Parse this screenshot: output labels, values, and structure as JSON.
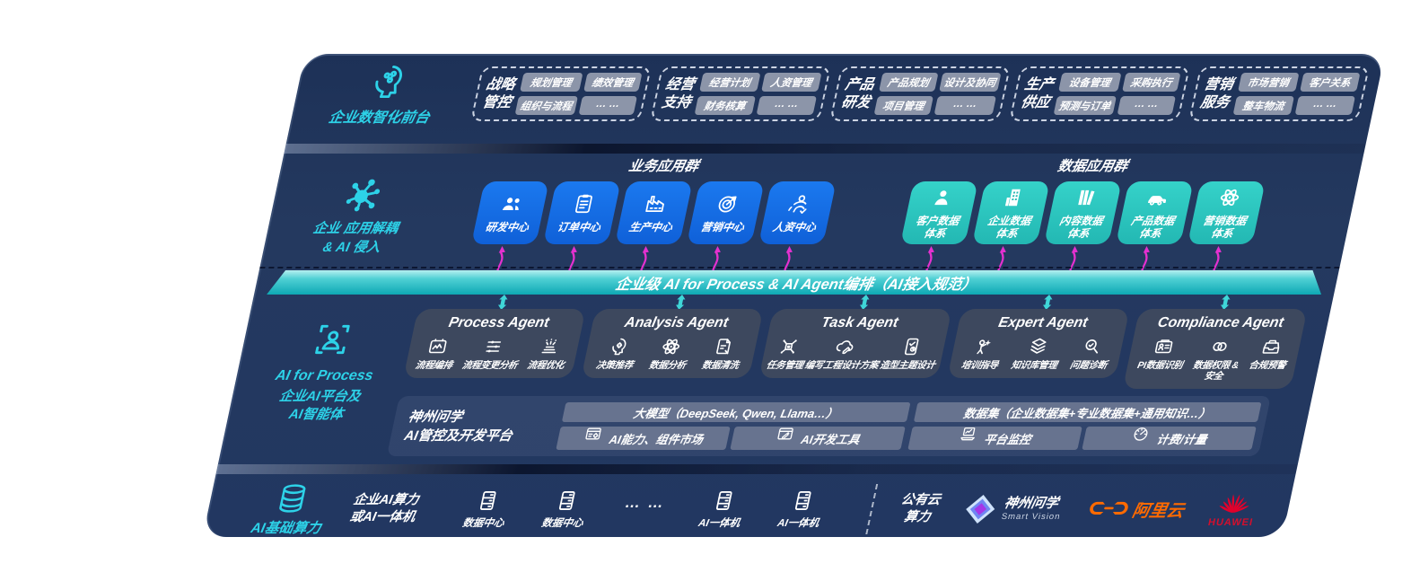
{
  "colors": {
    "navy": "#24395f",
    "business_blue": "#1570e8",
    "data_teal": "#2cc9c1",
    "bus_teal": "#0ea8b4",
    "magenta": "#e431cf",
    "cyan_accent": "#2dd2e8",
    "aliyun_orange": "#ff6a00",
    "huawei_red": "#d40f2d"
  },
  "front_office": {
    "label": "企业数智化前台",
    "icon": "head-brain-icon",
    "groups": [
      {
        "title_lines": [
          "战略",
          "管控"
        ],
        "items": [
          "规划管理",
          "绩效管理",
          "组织与流程",
          "… …"
        ]
      },
      {
        "title_lines": [
          "经营",
          "支持"
        ],
        "items": [
          "经营计划",
          "人资管理",
          "财务核算",
          "… …"
        ]
      },
      {
        "title_lines": [
          "产品",
          "研发"
        ],
        "items": [
          "产品规划",
          "设计及协同",
          "项目管理",
          "… …"
        ]
      },
      {
        "title_lines": [
          "生产",
          "供应"
        ],
        "items": [
          "设备管理",
          "采购执行",
          "预测与订单",
          "… …"
        ]
      },
      {
        "title_lines": [
          "营销",
          "服务"
        ],
        "items": [
          "市场营销",
          "客户关系",
          "整车物流",
          "… …"
        ]
      }
    ]
  },
  "app_layer": {
    "label_line1": "企业 应用解耦",
    "label_line2": "& AI 侵入",
    "icon": "molecule-icon",
    "business_group": {
      "title": "业务应用群",
      "apps": [
        {
          "lines": [
            "研发中心"
          ],
          "icon": "users-icon"
        },
        {
          "lines": [
            "订单中心"
          ],
          "icon": "clipboard-icon"
        },
        {
          "lines": [
            "生产中心"
          ],
          "icon": "factory-icon"
        },
        {
          "lines": [
            "营销中心"
          ],
          "icon": "target-icon"
        },
        {
          "lines": [
            "人资中心"
          ],
          "icon": "team-icon"
        }
      ]
    },
    "data_group": {
      "title": "数据应用群",
      "apps": [
        {
          "lines": [
            "客户数据",
            "体系"
          ],
          "icon": "user-icon"
        },
        {
          "lines": [
            "企业数据",
            "体系"
          ],
          "icon": "building-icon"
        },
        {
          "lines": [
            "内容数据",
            "体系"
          ],
          "icon": "books-icon"
        },
        {
          "lines": [
            "产品数据",
            "体系"
          ],
          "icon": "car-icon"
        },
        {
          "lines": [
            "营销数据",
            "体系"
          ],
          "icon": "atom-icon"
        }
      ]
    }
  },
  "ai_bus": {
    "label": "企业级 AI for Process & AI Agent编排（AI接入规范）"
  },
  "agent_layer": {
    "label_line1": "AI for Process",
    "label_line2": "企业AI平台及",
    "label_line3": "AI智能体",
    "icon": "scan-person-icon",
    "agents": [
      {
        "title": "Process Agent",
        "items": [
          {
            "lines": [
              "流程编排"
            ],
            "icon": "flow-icon"
          },
          {
            "lines": [
              "流程变更分析"
            ],
            "icon": "sliders-icon"
          },
          {
            "lines": [
              "流程优化"
            ],
            "icon": "optimize-icon"
          }
        ]
      },
      {
        "title": "Analysis Agent",
        "items": [
          {
            "lines": [
              "决策推荐"
            ],
            "icon": "headgear-icon"
          },
          {
            "lines": [
              "数据分析"
            ],
            "icon": "atom-icon"
          },
          {
            "lines": [
              "数据清洗"
            ],
            "icon": "docclean-icon"
          }
        ]
      },
      {
        "title": "Task Agent",
        "items": [
          {
            "lines": [
              "任务管理"
            ],
            "icon": "robot-icon"
          },
          {
            "lines": [
              "编写工程设计方案"
            ],
            "icon": "cloudpen-icon"
          },
          {
            "lines": [
              "造型主题设计"
            ],
            "icon": "tabletcheck-icon"
          }
        ]
      },
      {
        "title": "Expert Agent",
        "items": [
          {
            "lines": [
              "培训指导"
            ],
            "icon": "trainer-icon"
          },
          {
            "lines": [
              "知识库管理"
            ],
            "icon": "layers-icon"
          },
          {
            "lines": [
              "问题诊断"
            ],
            "icon": "diagnose-icon"
          }
        ]
      },
      {
        "title": "Compliance Agent",
        "items": [
          {
            "lines": [
              "PI数据识别"
            ],
            "icon": "idcard-icon"
          },
          {
            "lines": [
              "数据权限 &",
              "安全"
            ],
            "icon": "linksec-icon"
          },
          {
            "lines": [
              "合规预警"
            ],
            "icon": "inbox-icon"
          }
        ]
      }
    ]
  },
  "platform": {
    "name_line1": "神州问学",
    "name_line2": "AI管控及开发平台",
    "model_bar": "大模型（DeepSeek, Qwen, Llama…）",
    "dataset_bar": "数据集（企业数据集+专业数据集+通用知识…）",
    "tools": [
      {
        "label": "AI能力、组件市场",
        "icon": "wingear-icon"
      },
      {
        "label": "AI开发工具",
        "icon": "winpen-icon"
      },
      {
        "label": "平台监控",
        "icon": "laptop-icon"
      },
      {
        "label": "计费/计量",
        "icon": "gauge-icon"
      }
    ]
  },
  "infra": {
    "label": "AI基础算力",
    "icon": "database-icon",
    "compute_label_line1": "企业AI算力",
    "compute_label_line2": "或AI一体机",
    "nodes": [
      {
        "label": "数据中心",
        "icon": "server-icon"
      },
      {
        "label": "数据中心",
        "icon": "server-icon"
      },
      {
        "label": "… …",
        "icon": null
      },
      {
        "label": "AI一体机",
        "icon": "server-icon"
      },
      {
        "label": "AI一体机",
        "icon": "server-icon"
      }
    ],
    "public_cloud_line1": "公有云",
    "public_cloud_line2": "算力",
    "logos": [
      {
        "name": "神州问学",
        "sub": "Smart Vision",
        "icon": "smartvision-logo-icon"
      },
      {
        "name": "阿里云",
        "icon": "aliyun-logo-icon"
      },
      {
        "name": "HUAWEI",
        "icon": "huawei-logo-icon"
      }
    ]
  }
}
